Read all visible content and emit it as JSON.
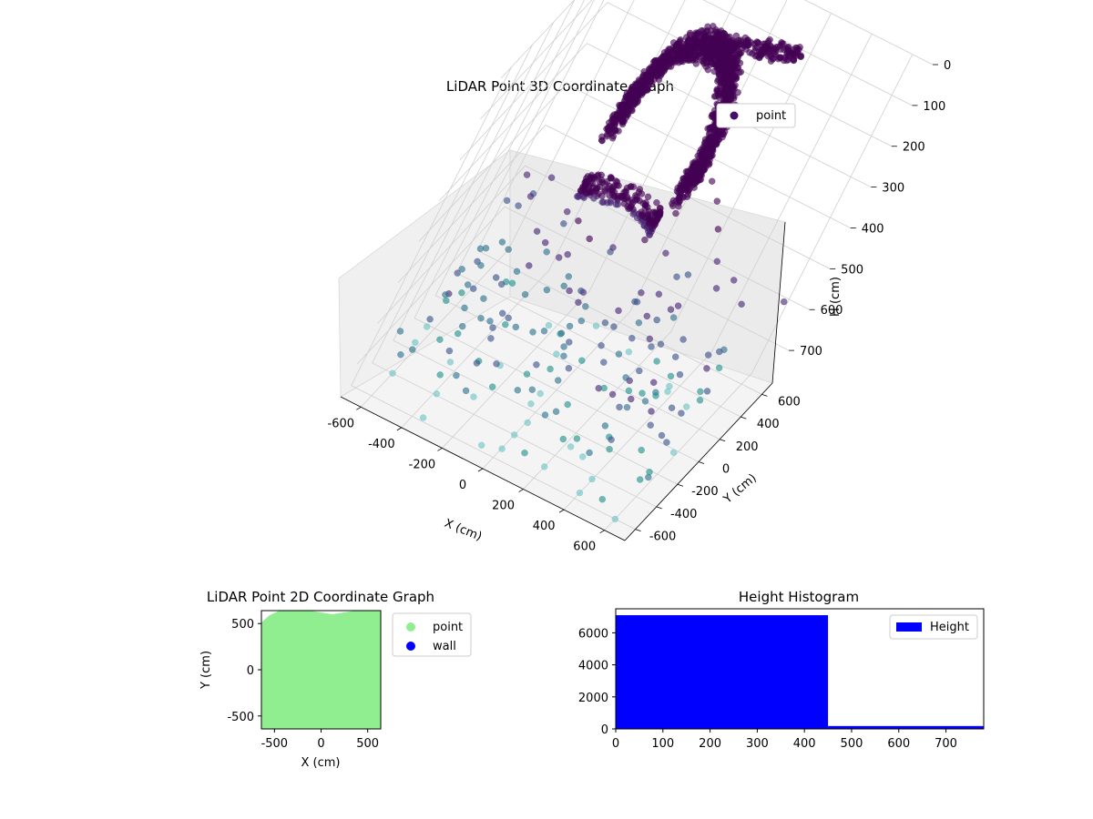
{
  "chart_data": [
    {
      "type": "scatter",
      "projection": "3d",
      "title": "LiDAR Point 3D Coordinate Graph",
      "xlabel": "X (cm)",
      "ylabel": "Y (cm)",
      "zlabel": "H (cm)",
      "xlim": [
        -700,
        700
      ],
      "ylim": [
        -700,
        700
      ],
      "zlim": [
        780,
        0
      ],
      "z_axis_inverted": true,
      "x_ticks": [
        "-600",
        "-400",
        "-200",
        "0",
        "200",
        "400",
        "600"
      ],
      "y_ticks": [
        "-600",
        "-400",
        "-200",
        "0",
        "200",
        "400",
        "600"
      ],
      "z_ticks": [
        "0",
        "100",
        "200",
        "300",
        "400",
        "500",
        "600",
        "700"
      ],
      "grid": true,
      "legend": [
        {
          "label": "point",
          "color": "#440f6b"
        }
      ],
      "legend_position": "upper-right",
      "colormap": [
        "#440154",
        "#482575",
        "#3b528b",
        "#2c728e",
        "#21918c",
        "#6cc3c4"
      ],
      "series": [
        {
          "name": "point",
          "description_points": [
            {
              "x": -200,
              "y": 200,
              "h": 40
            },
            {
              "x": -150,
              "y": 150,
              "h": 20
            },
            {
              "x": -100,
              "y": 250,
              "h": 10
            },
            {
              "x": 0,
              "y": 300,
              "h": 10
            },
            {
              "x": 100,
              "y": 350,
              "h": 20
            },
            {
              "x": 200,
              "y": 400,
              "h": 30
            },
            {
              "x": 300,
              "y": 450,
              "h": 40
            },
            {
              "x": 400,
              "y": 500,
              "h": 60
            },
            {
              "x": -250,
              "y": 100,
              "h": 120
            },
            {
              "x": -300,
              "y": 0,
              "h": 200
            },
            {
              "x": -280,
              "y": -100,
              "h": 300
            },
            {
              "x": -220,
              "y": -150,
              "h": 380
            },
            {
              "x": -150,
              "y": -100,
              "h": 420
            },
            {
              "x": -50,
              "y": -50,
              "h": 430
            },
            {
              "x": 50,
              "y": 0,
              "h": 400
            },
            {
              "x": 100,
              "y": 100,
              "h": 350
            },
            {
              "x": 150,
              "y": 250,
              "h": 300
            },
            {
              "x": 200,
              "y": 300,
              "h": 350
            },
            {
              "x": 250,
              "y": 350,
              "h": 420
            },
            {
              "x": 300,
              "y": 400,
              "h": 500
            },
            {
              "x": -600,
              "y": -400,
              "h": 780
            },
            {
              "x": -500,
              "y": -300,
              "h": 700
            },
            {
              "x": -400,
              "y": -200,
              "h": 650
            },
            {
              "x": -200,
              "y": -300,
              "h": 740
            },
            {
              "x": 0,
              "y": -400,
              "h": 780
            },
            {
              "x": 200,
              "y": -500,
              "h": 780
            },
            {
              "x": 400,
              "y": -550,
              "h": 780
            },
            {
              "x": 600,
              "y": -600,
              "h": 780
            },
            {
              "x": 100,
              "y": 0,
              "h": 600
            },
            {
              "x": 300,
              "y": 100,
              "h": 620
            }
          ]
        }
      ]
    },
    {
      "type": "scatter",
      "title": "LiDAR Point 2D Coordinate Graph",
      "xlabel": "X (cm)",
      "ylabel": "Y (cm)",
      "xlim": [
        -640,
        640
      ],
      "ylim": [
        -640,
        640
      ],
      "x_ticks": [
        "-500",
        "0",
        "500"
      ],
      "y_ticks": [
        "-500",
        "0",
        "500"
      ],
      "legend": [
        {
          "label": "point",
          "color": "#90ee90"
        },
        {
          "label": "wall",
          "color": "#0000ff"
        }
      ],
      "legend_position": "outside-right",
      "series": [
        {
          "name": "point",
          "coverage": "dense fill of the plotted area"
        },
        {
          "name": "wall",
          "values": []
        }
      ]
    },
    {
      "type": "bar",
      "subtype": "histogram",
      "title": "Height Histogram",
      "xlabel": "",
      "ylabel": "",
      "xlim": [
        0,
        780
      ],
      "ylim": [
        0,
        7500
      ],
      "x_ticks": [
        "0",
        "100",
        "200",
        "300",
        "400",
        "500",
        "600",
        "700"
      ],
      "y_ticks": [
        "0",
        "2000",
        "4000",
        "6000"
      ],
      "bins": [
        {
          "start": 0,
          "end": 450,
          "count": 7100
        },
        {
          "start": 450,
          "end": 780,
          "count": 180
        }
      ],
      "bar_color": "#0000ff",
      "legend": [
        {
          "label": "Height",
          "color": "#0000ff"
        }
      ],
      "legend_position": "upper-right"
    }
  ]
}
